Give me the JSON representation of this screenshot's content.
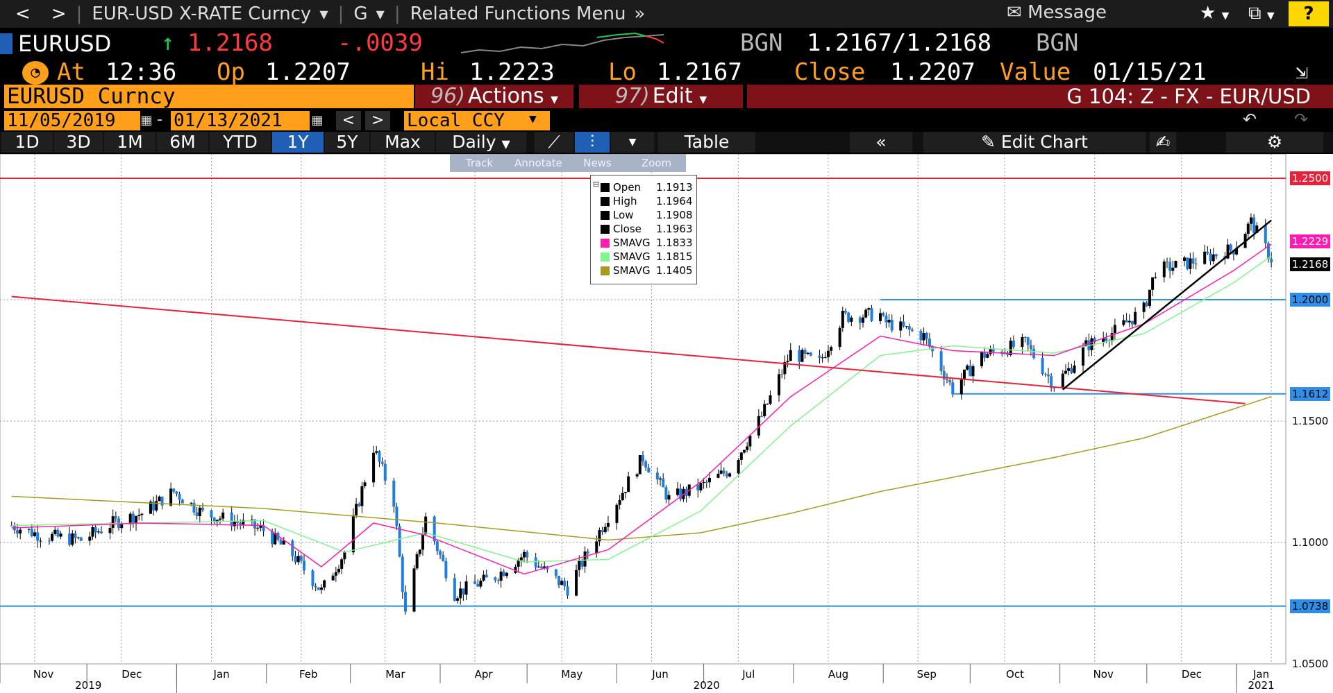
{
  "topbar": {
    "back": "<",
    "forward": ">",
    "security_menu": "EUR-USD X-RATE Curncy",
    "function_menu": "G",
    "related_menu": "Related Functions Menu",
    "message": "Message",
    "help": "?"
  },
  "quote": {
    "ticker": "EURUSD",
    "last": "1.2168",
    "change": "-.0039",
    "source": "BGN",
    "bid_ask": "1.2167/1.2168",
    "source2": "BGN",
    "at_label": "At",
    "time": "12:36",
    "open_label": "Op",
    "open": "1.2207",
    "high_label": "Hi",
    "high": "1.2223",
    "low_label": "Lo",
    "low": "1.2167",
    "close_label": "Close",
    "close": "1.2207",
    "value_label": "Value",
    "value_date": "01/15/21"
  },
  "secbar": {
    "security": "EURUSD Curncy",
    "actions_num": "96)",
    "actions": "Actions",
    "edit_num": "97)",
    "edit": "Edit",
    "title": "G 104: Z - FX - EUR/USD"
  },
  "datebar": {
    "start": "11/05/2019",
    "end": "01/13/2021",
    "currency": "Local CCY"
  },
  "tabs": {
    "periods": [
      "1D",
      "3D",
      "1M",
      "6M",
      "YTD",
      "1Y",
      "5Y",
      "Max"
    ],
    "active": "1Y",
    "frequency": "Daily",
    "table": "Table",
    "edit_chart": "Edit Chart"
  },
  "minitoolbar": [
    "Track",
    "Annotate",
    "News",
    "Zoom"
  ],
  "ohlc_legend": [
    {
      "label": "Open",
      "value": "1.1913",
      "color": "#000000"
    },
    {
      "label": "High",
      "value": "1.1964",
      "color": "#000000"
    },
    {
      "label": "Low",
      "value": "1.1908",
      "color": "#000000"
    },
    {
      "label": "Close",
      "value": "1.1963",
      "color": "#000000"
    },
    {
      "label": "SMAVG",
      "value": "1.1833",
      "color": "#ff1ab0"
    },
    {
      "label": "SMAVG",
      "value": "1.1815",
      "color": "#7ff58a"
    },
    {
      "label": "SMAVG",
      "value": "1.1405",
      "color": "#a89a1c"
    }
  ],
  "price_labels": [
    {
      "text": "1.2500",
      "value": 1.25,
      "bg": "#e8213a",
      "fg": "#ffffff"
    },
    {
      "text": "1.2229",
      "value": 1.2229,
      "bg": "#ff1ab0",
      "fg": "#ffffff"
    },
    {
      "text": "1.2168",
      "value": 1.2168,
      "bg": "#000000",
      "fg": "#ffffff"
    },
    {
      "text": "1.2000",
      "value": 1.2,
      "bg": "#2f8fe8",
      "fg": "#000000"
    },
    {
      "text": "1.1612",
      "value": 1.1612,
      "bg": "#2f8fe8",
      "fg": "#000000"
    },
    {
      "text": "1.1500",
      "value": 1.15,
      "bg": "#ffffff",
      "fg": "#000000"
    },
    {
      "text": "1.1000",
      "value": 1.1,
      "bg": "#ffffff",
      "fg": "#000000"
    },
    {
      "text": "1.0738",
      "value": 1.0738,
      "bg": "#2f8fe8",
      "fg": "#000000"
    },
    {
      "text": "1.0500",
      "value": 1.05,
      "bg": "#ffffff",
      "fg": "#000000"
    }
  ],
  "chart_data": {
    "type": "candlestick",
    "ylim": [
      1.05,
      1.26
    ],
    "y_ticks": [
      1.05,
      1.1,
      1.15,
      1.2
    ],
    "x_months": [
      "Nov",
      "Dec",
      "Jan",
      "Feb",
      "Mar",
      "Apr",
      "May",
      "Jun",
      "Jul",
      "Aug",
      "Sep",
      "Oct",
      "Nov",
      "Dec",
      "Jan"
    ],
    "x_years": [
      "2019",
      "2020",
      "2021"
    ],
    "grid": true,
    "close_series": [
      [
        "2019-11-05",
        1.107
      ],
      [
        "2019-11-15",
        1.103
      ],
      [
        "2019-11-29",
        1.101
      ],
      [
        "2019-12-10",
        1.108
      ],
      [
        "2019-12-20",
        1.112
      ],
      [
        "2019-12-31",
        1.121
      ],
      [
        "2020-01-10",
        1.112
      ],
      [
        "2020-01-20",
        1.109
      ],
      [
        "2020-01-31",
        1.105
      ],
      [
        "2020-02-10",
        1.095
      ],
      [
        "2020-02-20",
        1.08
      ],
      [
        "2020-02-28",
        1.096
      ],
      [
        "2020-03-09",
        1.139
      ],
      [
        "2020-03-16",
        1.117
      ],
      [
        "2020-03-20",
        1.07
      ],
      [
        "2020-03-27",
        1.11
      ],
      [
        "2020-04-06",
        1.079
      ],
      [
        "2020-04-20",
        1.086
      ],
      [
        "2020-04-30",
        1.095
      ],
      [
        "2020-05-15",
        1.081
      ],
      [
        "2020-05-29",
        1.111
      ],
      [
        "2020-06-10",
        1.135
      ],
      [
        "2020-06-19",
        1.118
      ],
      [
        "2020-06-30",
        1.123
      ],
      [
        "2020-07-10",
        1.13
      ],
      [
        "2020-07-21",
        1.152
      ],
      [
        "2020-07-31",
        1.178
      ],
      [
        "2020-08-10",
        1.174
      ],
      [
        "2020-08-18",
        1.193
      ],
      [
        "2020-08-31",
        1.194
      ],
      [
        "2020-09-01",
        1.191
      ],
      [
        "2020-09-15",
        1.185
      ],
      [
        "2020-09-25",
        1.163
      ],
      [
        "2020-10-05",
        1.177
      ],
      [
        "2020-10-20",
        1.182
      ],
      [
        "2020-10-30",
        1.165
      ],
      [
        "2020-11-04",
        1.171
      ],
      [
        "2020-11-10",
        1.181
      ],
      [
        "2020-11-20",
        1.187
      ],
      [
        "2020-11-30",
        1.196
      ],
      [
        "2020-12-04",
        1.212
      ],
      [
        "2020-12-15",
        1.215
      ],
      [
        "2020-12-31",
        1.221
      ],
      [
        "2021-01-06",
        1.232
      ],
      [
        "2021-01-13",
        1.2168
      ]
    ],
    "sma_fast": [
      [
        "2019-11-05",
        1.106
      ],
      [
        "2019-12-20",
        1.108
      ],
      [
        "2020-01-31",
        1.107
      ],
      [
        "2020-02-20",
        1.09
      ],
      [
        "2020-03-09",
        1.108
      ],
      [
        "2020-03-27",
        1.103
      ],
      [
        "2020-04-30",
        1.087
      ],
      [
        "2020-05-29",
        1.097
      ],
      [
        "2020-06-30",
        1.125
      ],
      [
        "2020-07-31",
        1.16
      ],
      [
        "2020-08-31",
        1.185
      ],
      [
        "2020-09-25",
        1.179
      ],
      [
        "2020-10-30",
        1.177
      ],
      [
        "2020-11-30",
        1.19
      ],
      [
        "2020-12-31",
        1.212
      ],
      [
        "2021-01-13",
        1.2229
      ]
    ],
    "sma_mid": [
      [
        "2019-11-05",
        1.107
      ],
      [
        "2019-12-20",
        1.108
      ],
      [
        "2020-01-31",
        1.109
      ],
      [
        "2020-02-28",
        1.096
      ],
      [
        "2020-03-27",
        1.104
      ],
      [
        "2020-04-30",
        1.092
      ],
      [
        "2020-05-29",
        1.093
      ],
      [
        "2020-06-30",
        1.113
      ],
      [
        "2020-07-31",
        1.148
      ],
      [
        "2020-08-31",
        1.177
      ],
      [
        "2020-09-25",
        1.181
      ],
      [
        "2020-10-30",
        1.178
      ],
      [
        "2020-11-30",
        1.186
      ],
      [
        "2020-12-31",
        1.207
      ],
      [
        "2021-01-13",
        1.218
      ]
    ],
    "sma_slow": [
      [
        "2019-11-05",
        1.119
      ],
      [
        "2020-01-31",
        1.114
      ],
      [
        "2020-03-31",
        1.108
      ],
      [
        "2020-05-29",
        1.101
      ],
      [
        "2020-06-30",
        1.104
      ],
      [
        "2020-07-31",
        1.112
      ],
      [
        "2020-08-31",
        1.121
      ],
      [
        "2020-09-30",
        1.128
      ],
      [
        "2020-10-30",
        1.135
      ],
      [
        "2020-11-30",
        1.143
      ],
      [
        "2020-12-31",
        1.155
      ],
      [
        "2021-01-13",
        1.1601
      ]
    ],
    "trendline_down": [
      [
        "2019-11-05",
        1.2013
      ],
      [
        "2021-01-04",
        1.1572
      ]
    ],
    "trendline_up": [
      [
        "2020-11-02",
        1.163
      ],
      [
        "2021-01-13",
        1.2327
      ]
    ],
    "hlines": [
      1.25,
      1.2,
      1.1612,
      1.0738
    ],
    "hline_segments": [
      {
        "value": 1.2,
        "from": "2020-08-31"
      },
      {
        "value": 1.1612,
        "from": "2020-09-25"
      }
    ]
  }
}
